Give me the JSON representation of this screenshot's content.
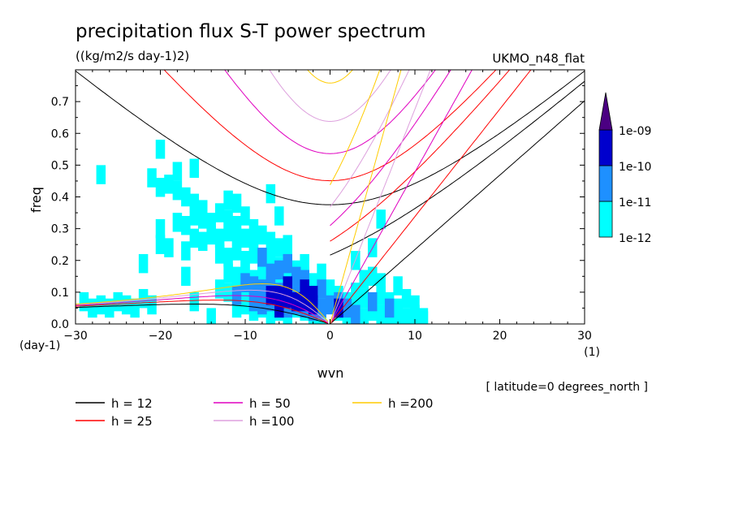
{
  "chart_data": {
    "type": "heatmap",
    "title": "precipitation flux S-T power spectrum",
    "units": "((kg/m2/s day-1)2)",
    "model": "UKMO_n48_flat",
    "xlabel": "wvn",
    "ylabel": "freq",
    "y_unit": "(day-1)",
    "x_unit": "(1)",
    "xlim": [
      -30,
      30
    ],
    "ylim": [
      0,
      0.8
    ],
    "x_ticks": [
      "−30",
      "−20",
      "−10",
      "0",
      "10",
      "20",
      "30"
    ],
    "y_ticks": [
      "0.0",
      "0.1",
      "0.2",
      "0.3",
      "0.4",
      "0.5",
      "0.6",
      "0.7"
    ],
    "note": "[ latitude=0 degrees_north ]",
    "colorbar": {
      "levels": [
        "1e-12",
        "1e-11",
        "1e-10",
        "1e-09"
      ],
      "colors": [
        "#00ffff",
        "#1e90ff",
        "#0000cd",
        "#4b0082"
      ]
    },
    "dispersion_curves": [
      {
        "h": 12,
        "label": "h = 12",
        "color": "#000000"
      },
      {
        "h": 25,
        "label": "h = 25",
        "color": "#ff0000"
      },
      {
        "h": 50,
        "label": "h = 50",
        "color": "#e000c0"
      },
      {
        "h": 100,
        "label": "h =100",
        "color": "#dda0dd"
      },
      {
        "h": 200,
        "label": "h =200",
        "color": "#ffcc00"
      }
    ],
    "contours": [
      {
        "level": "1e-12",
        "cells": [
          [
            -29,
            0.07
          ],
          [
            -28,
            0.05
          ],
          [
            -27,
            0.06
          ],
          [
            -26,
            0.05
          ],
          [
            -25,
            0.07
          ],
          [
            -24,
            0.06
          ],
          [
            -23,
            0.05
          ],
          [
            -22,
            0.08
          ],
          [
            -21,
            0.06
          ],
          [
            -21,
            0.46
          ],
          [
            -20,
            0.43
          ],
          [
            -19,
            0.44
          ],
          [
            -18,
            0.42
          ],
          [
            -17,
            0.4
          ],
          [
            -16,
            0.38
          ],
          [
            -15,
            0.36
          ],
          [
            -27,
            0.47
          ],
          [
            -18,
            0.48
          ],
          [
            -16,
            0.49
          ],
          [
            -12,
            0.39
          ],
          [
            -11,
            0.38
          ],
          [
            -7,
            0.41
          ],
          [
            -6,
            0.34
          ],
          [
            -20,
            0.25
          ],
          [
            -19,
            0.24
          ],
          [
            -17,
            0.23
          ],
          [
            -16,
            0.27
          ],
          [
            -15,
            0.26
          ],
          [
            -18,
            0.32
          ],
          [
            -17,
            0.31
          ],
          [
            -16,
            0.34
          ],
          [
            -15,
            0.33
          ],
          [
            -14,
            0.32
          ],
          [
            -13,
            0.35
          ],
          [
            -12,
            0.33
          ],
          [
            -11,
            0.31
          ],
          [
            -10,
            0.34
          ],
          [
            -9,
            0.3
          ],
          [
            -14,
            0.28
          ],
          [
            -13,
            0.27
          ],
          [
            -12,
            0.29
          ],
          [
            -11,
            0.26
          ],
          [
            -10,
            0.27
          ],
          [
            -9,
            0.25
          ],
          [
            -8,
            0.28
          ],
          [
            -7,
            0.26
          ],
          [
            -6,
            0.24
          ],
          [
            -5,
            0.25
          ],
          [
            -13,
            0.22
          ],
          [
            -12,
            0.21
          ],
          [
            -11,
            0.23
          ],
          [
            -10,
            0.2
          ],
          [
            -9,
            0.22
          ],
          [
            -8,
            0.19
          ],
          [
            -7,
            0.21
          ],
          [
            -6,
            0.18
          ],
          [
            -5,
            0.2
          ],
          [
            -4,
            0.17
          ],
          [
            -3,
            0.19
          ],
          [
            -12,
            0.16
          ],
          [
            -11,
            0.15
          ],
          [
            -10,
            0.17
          ],
          [
            -9,
            0.14
          ],
          [
            -8,
            0.15
          ],
          [
            -7,
            0.13
          ],
          [
            -6,
            0.16
          ],
          [
            -5,
            0.14
          ],
          [
            -4,
            0.12
          ],
          [
            -3,
            0.15
          ],
          [
            -2,
            0.13
          ],
          [
            -1,
            0.16
          ],
          [
            -13,
            0.11
          ],
          [
            -12,
            0.1
          ],
          [
            -11,
            0.12
          ],
          [
            -10,
            0.09
          ],
          [
            -9,
            0.11
          ],
          [
            -8,
            0.08
          ],
          [
            -7,
            0.1
          ],
          [
            -6,
            0.09
          ],
          [
            -5,
            0.07
          ],
          [
            -4,
            0.1
          ],
          [
            -3,
            0.08
          ],
          [
            -2,
            0.06
          ],
          [
            -1,
            0.09
          ],
          [
            -11,
            0.05
          ],
          [
            -10,
            0.06
          ],
          [
            -9,
            0.04
          ],
          [
            -8,
            0.05
          ],
          [
            -7,
            0.03
          ],
          [
            -6,
            0.04
          ],
          [
            -5,
            0.03
          ],
          [
            -4,
            0.05
          ],
          [
            -3,
            0.04
          ],
          [
            -2,
            0.02
          ],
          [
            -1,
            0.03
          ],
          [
            0,
            0.11
          ],
          [
            1,
            0.09
          ],
          [
            2,
            0.07
          ],
          [
            3,
            0.1
          ],
          [
            4,
            0.08
          ],
          [
            5,
            0.06
          ],
          [
            6,
            0.09
          ],
          [
            7,
            0.07
          ],
          [
            8,
            0.05
          ],
          [
            9,
            0.08
          ],
          [
            10,
            0.06
          ],
          [
            1,
            0.04
          ],
          [
            2,
            0.03
          ],
          [
            3,
            0.05
          ],
          [
            4,
            0.02
          ],
          [
            5,
            0.04
          ],
          [
            6,
            0.03
          ],
          [
            7,
            0.02
          ],
          [
            8,
            0.03
          ],
          [
            9,
            0.02
          ],
          [
            10,
            0.03
          ],
          [
            11,
            0.02
          ],
          [
            4,
            0.14
          ],
          [
            5,
            0.15
          ],
          [
            6,
            0.13
          ],
          [
            3,
            0.2
          ],
          [
            5,
            0.24
          ],
          [
            6,
            0.33
          ],
          [
            8,
            0.12
          ],
          [
            11,
            0.01
          ],
          [
            -22,
            0.19
          ],
          [
            -20,
            0.3
          ],
          [
            -17,
            0.15
          ],
          [
            -16,
            0.07
          ],
          [
            -14,
            0.02
          ],
          [
            -20,
            0.55
          ]
        ]
      },
      {
        "level": "1e-11",
        "cells": [
          [
            -10,
            0.13
          ],
          [
            -9,
            0.12
          ],
          [
            -8,
            0.11
          ],
          [
            -7,
            0.12
          ],
          [
            -6,
            0.1
          ],
          [
            -5,
            0.11
          ],
          [
            -4,
            0.09
          ],
          [
            -3,
            0.1
          ],
          [
            -2,
            0.08
          ],
          [
            -9,
            0.07
          ],
          [
            -8,
            0.06
          ],
          [
            -7,
            0.07
          ],
          [
            -6,
            0.06
          ],
          [
            -5,
            0.05
          ],
          [
            -4,
            0.06
          ],
          [
            -3,
            0.05
          ],
          [
            -2,
            0.04
          ],
          [
            -1,
            0.05
          ],
          [
            -7,
            0.16
          ],
          [
            -6,
            0.17
          ],
          [
            -4,
            0.15
          ],
          [
            -3,
            0.14
          ],
          [
            -1,
            0.11
          ],
          [
            0,
            0.06
          ],
          [
            1,
            0.07
          ],
          [
            2,
            0.05
          ],
          [
            3,
            0.03
          ],
          [
            5,
            0.07
          ],
          [
            7,
            0.05
          ],
          [
            -8,
            0.21
          ],
          [
            -5,
            0.19
          ],
          [
            -11,
            0.09
          ]
        ]
      },
      {
        "level": "1e-10",
        "cells": [
          [
            -7,
            0.09
          ],
          [
            -6,
            0.09
          ],
          [
            -5,
            0.08
          ],
          [
            -4,
            0.07
          ],
          [
            -3,
            0.07
          ],
          [
            -2,
            0.06
          ],
          [
            -5,
            0.12
          ],
          [
            -3,
            0.11
          ],
          [
            -6,
            0.05
          ],
          [
            -2,
            0.09
          ],
          [
            1,
            0.05
          ]
        ]
      }
    ]
  }
}
